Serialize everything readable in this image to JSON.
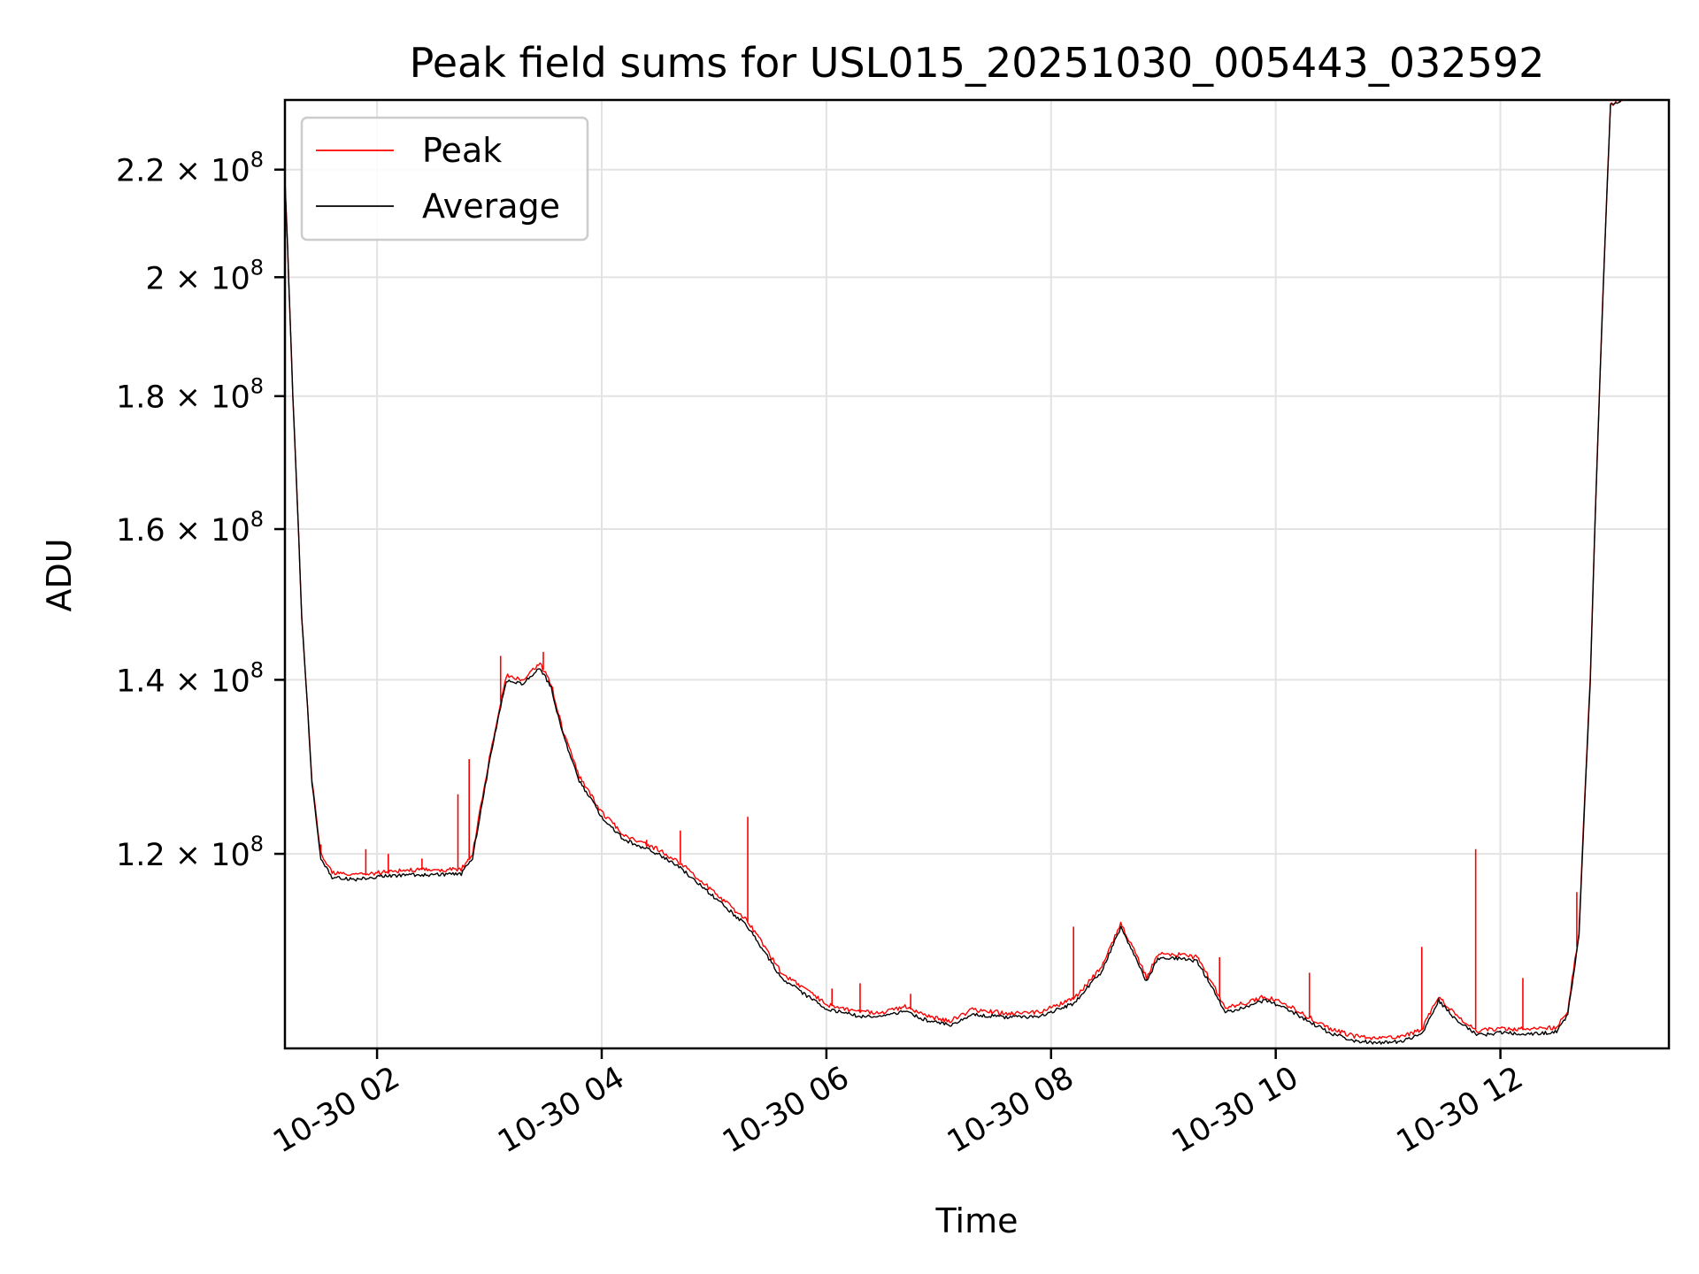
{
  "chart_data": {
    "type": "line",
    "title": "Peak field sums for USL015_20251030_005443_032592",
    "xlabel": "Time",
    "ylabel": "ADU",
    "x_ticks": [
      "10-30 02",
      "10-30 04",
      "10-30 06",
      "10-30 08",
      "10-30 10",
      "10-30 12"
    ],
    "x_tick_hours": [
      2,
      4,
      6,
      8,
      10,
      12
    ],
    "y_ticks": [
      {
        "value": 120000000,
        "mantissa": "1.2",
        "exponent": "8"
      },
      {
        "value": 140000000,
        "mantissa": "1.4",
        "exponent": "8"
      },
      {
        "value": 160000000,
        "mantissa": "1.6",
        "exponent": "8"
      },
      {
        "value": 180000000,
        "mantissa": "1.8",
        "exponent": "8"
      },
      {
        "value": 200000000,
        "mantissa": "2",
        "exponent": "8"
      },
      {
        "value": 220000000,
        "mantissa": "2.2",
        "exponent": "8"
      }
    ],
    "y_scale": "log",
    "x_range_hours": [
      1.18,
      13.5
    ],
    "y_range": [
      101000000,
      234000000
    ],
    "grid": true,
    "legend_position": "upper-left",
    "series": [
      {
        "name": "Peak",
        "color": "#ff0000",
        "points": [
          [
            1.18,
            218000000
          ],
          [
            1.25,
            180000000
          ],
          [
            1.33,
            148000000
          ],
          [
            1.42,
            128000000
          ],
          [
            1.5,
            120000000
          ],
          [
            1.6,
            118000000
          ],
          [
            1.8,
            117800000
          ],
          [
            2.0,
            118000000
          ],
          [
            2.3,
            118300000
          ],
          [
            2.6,
            118300000
          ],
          [
            2.75,
            118400000
          ],
          [
            2.85,
            120000000
          ],
          [
            2.95,
            127000000
          ],
          [
            3.05,
            134000000
          ],
          [
            3.15,
            140500000
          ],
          [
            3.3,
            140000000
          ],
          [
            3.45,
            142000000
          ],
          [
            3.55,
            139500000
          ],
          [
            3.65,
            134000000
          ],
          [
            3.8,
            128500000
          ],
          [
            4.0,
            124500000
          ],
          [
            4.2,
            122000000
          ],
          [
            4.5,
            120500000
          ],
          [
            4.7,
            119000000
          ],
          [
            5.0,
            116000000
          ],
          [
            5.3,
            113000000
          ],
          [
            5.45,
            110500000
          ],
          [
            5.6,
            108000000
          ],
          [
            5.8,
            106500000
          ],
          [
            6.0,
            105000000
          ],
          [
            6.3,
            104300000
          ],
          [
            6.5,
            104300000
          ],
          [
            6.7,
            104800000
          ],
          [
            6.9,
            103900000
          ],
          [
            7.1,
            103500000
          ],
          [
            7.3,
            104500000
          ],
          [
            7.6,
            104200000
          ],
          [
            7.9,
            104300000
          ],
          [
            8.2,
            105500000
          ],
          [
            8.45,
            108500000
          ],
          [
            8.62,
            112800000
          ],
          [
            8.75,
            110000000
          ],
          [
            8.85,
            107500000
          ],
          [
            8.95,
            109800000
          ],
          [
            9.1,
            109800000
          ],
          [
            9.3,
            109500000
          ],
          [
            9.45,
            106700000
          ],
          [
            9.55,
            104700000
          ],
          [
            9.75,
            105200000
          ],
          [
            9.9,
            105800000
          ],
          [
            10.1,
            105000000
          ],
          [
            10.3,
            103800000
          ],
          [
            10.5,
            102700000
          ],
          [
            10.7,
            102100000
          ],
          [
            10.9,
            101900000
          ],
          [
            11.1,
            102000000
          ],
          [
            11.3,
            102700000
          ],
          [
            11.45,
            105800000
          ],
          [
            11.6,
            104000000
          ],
          [
            11.8,
            102600000
          ],
          [
            12.0,
            102800000
          ],
          [
            12.3,
            102700000
          ],
          [
            12.5,
            102900000
          ],
          [
            12.6,
            104500000
          ],
          [
            12.7,
            112000000
          ],
          [
            12.8,
            140000000
          ],
          [
            12.9,
            190000000
          ],
          [
            12.98,
            233000000
          ],
          [
            13.1,
            234500000
          ],
          [
            13.5,
            234500000
          ]
        ]
      },
      {
        "name": "Average",
        "color": "#000000",
        "points": [
          [
            1.18,
            218000000
          ],
          [
            1.25,
            180000000
          ],
          [
            1.33,
            148000000
          ],
          [
            1.42,
            127800000
          ],
          [
            1.5,
            119500000
          ],
          [
            1.6,
            117500000
          ],
          [
            1.8,
            117300000
          ],
          [
            2.0,
            117600000
          ],
          [
            2.3,
            117800000
          ],
          [
            2.6,
            117800000
          ],
          [
            2.75,
            117900000
          ],
          [
            2.85,
            119500000
          ],
          [
            2.95,
            126500000
          ],
          [
            3.05,
            133500000
          ],
          [
            3.15,
            139800000
          ],
          [
            3.3,
            139500000
          ],
          [
            3.45,
            141500000
          ],
          [
            3.55,
            139000000
          ],
          [
            3.65,
            133500000
          ],
          [
            3.8,
            128000000
          ],
          [
            4.0,
            124000000
          ],
          [
            4.2,
            121500000
          ],
          [
            4.5,
            120000000
          ],
          [
            4.7,
            118500000
          ],
          [
            5.0,
            115500000
          ],
          [
            5.3,
            112500000
          ],
          [
            5.45,
            110000000
          ],
          [
            5.6,
            107500000
          ],
          [
            5.8,
            106000000
          ],
          [
            6.0,
            104600000
          ],
          [
            6.3,
            103900000
          ],
          [
            6.5,
            103900000
          ],
          [
            6.7,
            104400000
          ],
          [
            6.9,
            103500000
          ],
          [
            7.1,
            103100000
          ],
          [
            7.3,
            104100000
          ],
          [
            7.6,
            103800000
          ],
          [
            7.9,
            103900000
          ],
          [
            8.2,
            105100000
          ],
          [
            8.45,
            108100000
          ],
          [
            8.62,
            112400000
          ],
          [
            8.75,
            109600000
          ],
          [
            8.85,
            107100000
          ],
          [
            8.95,
            109400000
          ],
          [
            9.1,
            109400000
          ],
          [
            9.3,
            109100000
          ],
          [
            9.45,
            106300000
          ],
          [
            9.55,
            104300000
          ],
          [
            9.75,
            104800000
          ],
          [
            9.9,
            105400000
          ],
          [
            10.1,
            104600000
          ],
          [
            10.3,
            103400000
          ],
          [
            10.5,
            102300000
          ],
          [
            10.7,
            101700000
          ],
          [
            10.9,
            101500000
          ],
          [
            11.1,
            101600000
          ],
          [
            11.3,
            102300000
          ],
          [
            11.45,
            105400000
          ],
          [
            11.6,
            103600000
          ],
          [
            11.8,
            102200000
          ],
          [
            12.0,
            102400000
          ],
          [
            12.3,
            102300000
          ],
          [
            12.5,
            102500000
          ],
          [
            12.6,
            104100000
          ],
          [
            12.7,
            111500000
          ],
          [
            12.8,
            139500000
          ],
          [
            12.9,
            189500000
          ],
          [
            12.98,
            232800000
          ],
          [
            13.1,
            234300000
          ],
          [
            13.5,
            234300000
          ]
        ]
      }
    ],
    "peak_spikes": [
      [
        1.5,
        121000000
      ],
      [
        1.9,
        120500000
      ],
      [
        2.1,
        120000000
      ],
      [
        2.4,
        119500000
      ],
      [
        2.72,
        126500000
      ],
      [
        2.82,
        130500000
      ],
      [
        3.1,
        143000000
      ],
      [
        3.48,
        143500000
      ],
      [
        4.4,
        121500000
      ],
      [
        4.7,
        122500000
      ],
      [
        5.3,
        124000000
      ],
      [
        6.05,
        106500000
      ],
      [
        6.3,
        107000000
      ],
      [
        6.75,
        106000000
      ],
      [
        8.2,
        112500000
      ],
      [
        9.5,
        109500000
      ],
      [
        10.3,
        108000000
      ],
      [
        11.3,
        110500000
      ],
      [
        11.78,
        120500000
      ],
      [
        12.2,
        107500000
      ],
      [
        12.68,
        116000000
      ]
    ]
  }
}
